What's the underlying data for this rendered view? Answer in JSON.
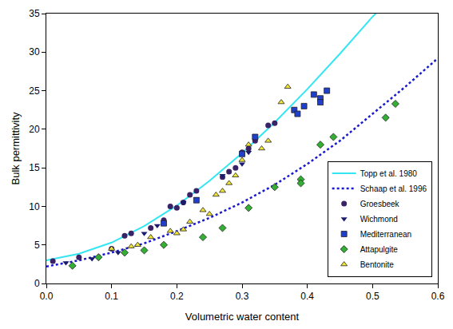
{
  "chart_data": {
    "type": "scatter",
    "x_label": "Volumetric water content",
    "y_label": "Bulk permittivity",
    "xlim": [
      0,
      0.6
    ],
    "ylim": [
      0,
      35
    ],
    "xticks": [
      {
        "value": 0,
        "label": "0.0"
      },
      0.1,
      0.2,
      0.3,
      0.4,
      0.5,
      0.6
    ],
    "yticks": [
      0,
      5,
      10,
      15,
      20,
      25,
      30,
      35
    ],
    "grid": false,
    "legend": "bottom right",
    "series": [
      {
        "name": "Topp et al. 1980",
        "type": "line",
        "color": "#33e6f2",
        "line_style": "solid",
        "x": [
          0,
          0.05,
          0.1,
          0.15,
          0.2,
          0.25,
          0.3,
          0.35,
          0.4,
          0.45,
          0.5,
          0.505
        ],
        "values": [
          3.0,
          3.85,
          5.3,
          7.45,
          10.1,
          13.3,
          16.9,
          20.9,
          25.2,
          29.8,
          34.6,
          35
        ]
      },
      {
        "name": "Schaap et al. 1996",
        "type": "line",
        "color": "#1a1acc",
        "line_style": "dot",
        "x": [
          0,
          0.05,
          0.1,
          0.15,
          0.2,
          0.25,
          0.3,
          0.35,
          0.4,
          0.45,
          0.5,
          0.55,
          0.6
        ],
        "values": [
          2.2,
          3.0,
          4.0,
          5.2,
          6.8,
          8.5,
          10.5,
          12.8,
          15.5,
          18.5,
          22.0,
          25.5,
          29.2
        ]
      },
      {
        "name": "Groesbeek",
        "type": "scatter",
        "color": "#3a2266",
        "marker": "circle",
        "x": [
          0.01,
          0.05,
          0.1,
          0.12,
          0.13,
          0.16,
          0.18,
          0.19,
          0.2,
          0.21,
          0.22,
          0.23,
          0.27,
          0.28,
          0.29,
          0.3,
          0.31,
          0.32,
          0.34,
          0.35
        ],
        "values": [
          2.9,
          3.4,
          4.5,
          6.2,
          6.5,
          7.2,
          8.2,
          10,
          9.8,
          10.5,
          11.5,
          12,
          13.8,
          14.5,
          15,
          17,
          17.5,
          18.5,
          20.5,
          20.8
        ]
      },
      {
        "name": "Wichmond",
        "type": "scatter",
        "color": "#1a1a6e",
        "marker": "triangle-down",
        "x": [
          0.03,
          0.07,
          0.11,
          0.15,
          0.17,
          0.21,
          0.23,
          0.27,
          0.3,
          0.31
        ],
        "values": [
          2.7,
          3.2,
          4,
          6.5,
          7.5,
          10.5,
          11,
          14,
          15.5,
          17
        ]
      },
      {
        "name": "Mediterranean",
        "type": "scatter",
        "color": "#1f3fcc",
        "marker": "square",
        "x": [
          0.18,
          0.23,
          0.3,
          0.32,
          0.38,
          0.385,
          0.395,
          0.41,
          0.42,
          0.43,
          0.42
        ],
        "values": [
          7.8,
          10.8,
          16.8,
          19,
          22.5,
          22,
          23,
          24.5,
          24,
          25,
          23.5
        ]
      },
      {
        "name": "Attapulgite",
        "type": "scatter",
        "color": "#33b033",
        "marker": "diamond",
        "x": [
          0.04,
          0.08,
          0.12,
          0.15,
          0.18,
          0.24,
          0.27,
          0.31,
          0.35,
          0.39,
          0.39,
          0.42,
          0.44,
          0.52,
          0.535
        ],
        "values": [
          2.3,
          3.4,
          4,
          4.3,
          5,
          6,
          7.2,
          9.8,
          12.5,
          13.5,
          13,
          18,
          19,
          21.5,
          23.3
        ]
      },
      {
        "name": "Bentonite",
        "type": "scatter",
        "color": "#f2e634",
        "marker": "triangle-up",
        "x": [
          0.1,
          0.13,
          0.14,
          0.16,
          0.19,
          0.2,
          0.21,
          0.22,
          0.24,
          0.25,
          0.26,
          0.27,
          0.28,
          0.29,
          0.3,
          0.31,
          0.33,
          0.34,
          0.36,
          0.37
        ],
        "values": [
          4.5,
          4.8,
          5,
          6,
          6.8,
          6.5,
          7,
          8,
          9.5,
          9,
          11.5,
          12,
          13,
          14,
          16,
          18,
          17.5,
          18.5,
          23.5,
          25.5
        ]
      }
    ]
  }
}
